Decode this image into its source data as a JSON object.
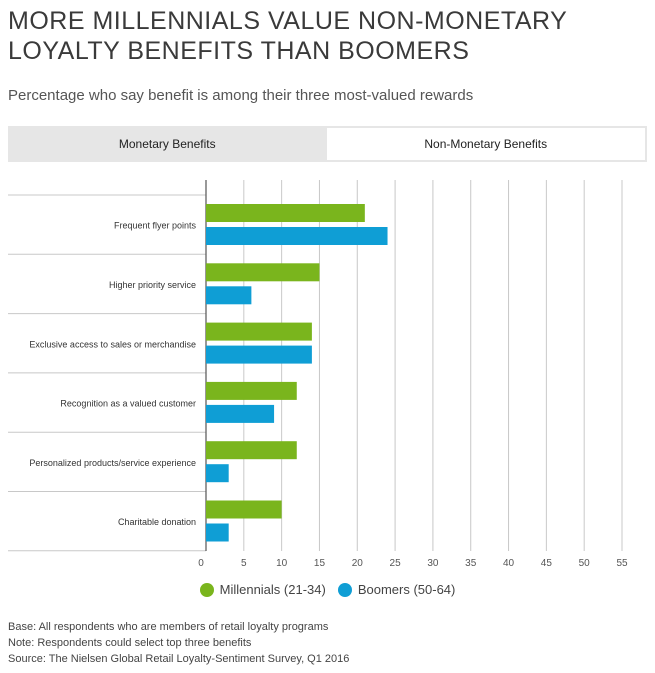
{
  "title": "MORE MILLENNIALS VALUE NON-MONETARY LOYALTY BENEFITS THAN BOOMERS",
  "subtitle": "Percentage who say benefit is among their three most-valued rewards",
  "tabs": [
    {
      "label": "Monetary Benefits",
      "active": false
    },
    {
      "label": "Non-Monetary Benefits",
      "active": true
    }
  ],
  "chart_data": {
    "type": "bar",
    "orientation": "horizontal",
    "categories": [
      "Frequent flyer points",
      "Higher priority service",
      "Exclusive access to sales or merchandise",
      "Recognition as a valued customer",
      "Personalized products/service experience",
      "Charitable donation"
    ],
    "series": [
      {
        "name": "Millennials (21-34)",
        "color": "#7ab51d",
        "values": [
          21,
          15,
          14,
          12,
          12,
          10
        ]
      },
      {
        "name": "Boomers (50-64)",
        "color": "#0f9ed5",
        "values": [
          24,
          6,
          14,
          9,
          3,
          3
        ]
      }
    ],
    "xlim": [
      0,
      55
    ],
    "xticks": [
      0,
      5,
      10,
      15,
      20,
      25,
      30,
      35,
      40,
      45,
      50,
      55
    ],
    "grid": true,
    "legend_position": "bottom-center"
  },
  "legend": [
    {
      "label": "Millennials (21-34)",
      "color": "#7ab51d"
    },
    {
      "label": "Boomers (50-64)",
      "color": "#0f9ed5"
    }
  ],
  "notes": {
    "base": "Base: All respondents who are members of retail loyalty programs",
    "note": "Note: Respondents could select top three benefits",
    "source": "Source: The Nielsen Global Retail Loyalty-Sentiment Survey, Q1 2016"
  }
}
